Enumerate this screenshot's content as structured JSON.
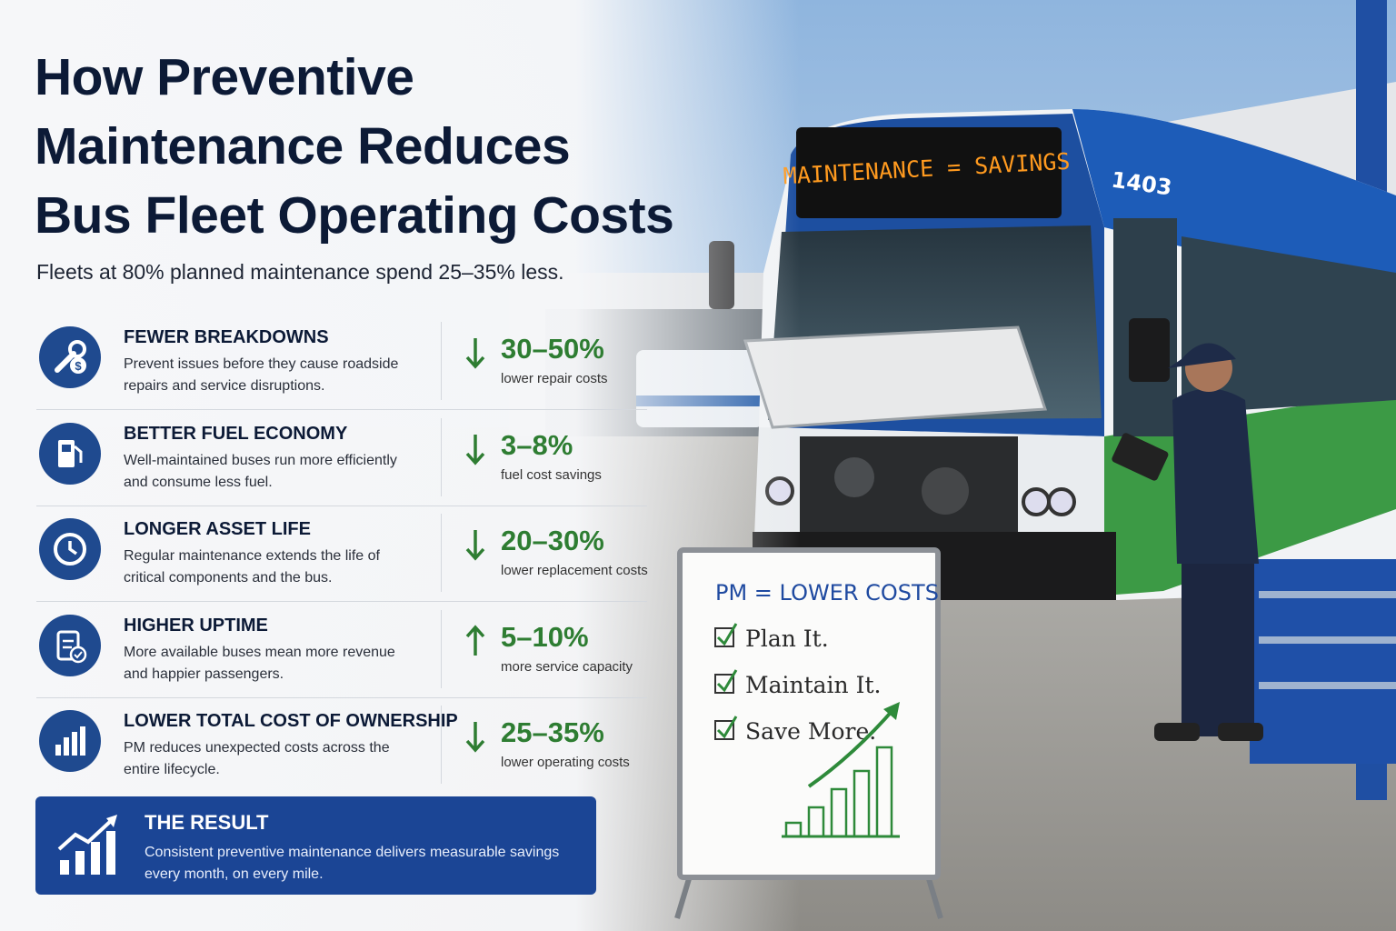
{
  "header": {
    "title_lines": [
      "How Preventive",
      "Maintenance Reduces",
      "Bus Fleet Operating Costs"
    ],
    "subtitle": "Fleets at 80% planned maintenance spend 25–35% less."
  },
  "items": [
    {
      "title": "FEWER BREAKDOWNS",
      "text": "Prevent issues before they cause roadside repairs and service disruptions.",
      "stat": "30–50%",
      "stat_label": "lower repair costs",
      "trend": "down"
    },
    {
      "title": "BETTER FUEL ECONOMY",
      "text": "Well-maintained buses run more efficiently and consume less fuel.",
      "stat": "3–8%",
      "stat_label": "fuel cost savings",
      "trend": "down"
    },
    {
      "title": "LONGER ASSET LIFE",
      "text": "Regular maintenance extends the life of critical components and the bus.",
      "stat": "20–30%",
      "stat_label": "lower replacement costs",
      "trend": "down"
    },
    {
      "title": "HIGHER UPTIME",
      "text": "More available buses mean more revenue and happier passengers.",
      "stat": "5–10%",
      "stat_label": "more service capacity",
      "trend": "up"
    },
    {
      "title": "LOWER TOTAL COST OF OWNERSHIP",
      "text": "PM reduces unexpected costs across the entire lifecycle.",
      "stat": "25–35%",
      "stat_label": "lower operating costs",
      "trend": "down"
    }
  ],
  "result": {
    "title": "THE RESULT",
    "text": "Consistent preventive maintenance delivers measurable savings every month, on every mile."
  },
  "photo": {
    "destination_sign": "MAINTENANCE = SAVINGS",
    "bus_number": "1403",
    "whiteboard": {
      "heading": "PM = LOWER COSTS",
      "checklist": [
        "Plan It.",
        "Maintain It.",
        "Save More."
      ]
    }
  }
}
